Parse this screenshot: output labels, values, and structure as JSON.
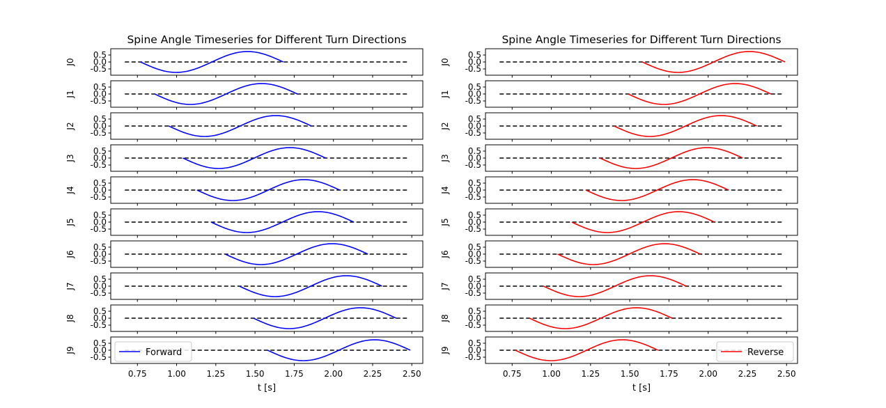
{
  "chart_data": [
    {
      "type": "line",
      "title": "Spine Angle Timeseries for Different Turn Directions",
      "xlabel": "t [s]",
      "xlim": [
        0.58,
        2.57
      ],
      "xticks": [
        "0.75",
        "1.00",
        "1.25",
        "1.50",
        "1.75",
        "2.00",
        "2.25",
        "2.50"
      ],
      "ylim": [
        -0.95,
        0.95
      ],
      "yticks": [
        "0.5",
        "0.0",
        "-0.5"
      ],
      "legend": {
        "label": "Forward",
        "position": "lower-left"
      },
      "color": "#0000ff",
      "baseline": {
        "x": [
          0.67,
          2.48
        ],
        "y": 0.0,
        "style": "dashed"
      },
      "series": [
        {
          "label": "J0",
          "t_start": 0.77,
          "t_end": 1.68,
          "amplitude": 0.75,
          "period": 0.91
        },
        {
          "label": "J1",
          "t_start": 0.86,
          "t_end": 1.77,
          "amplitude": 0.75,
          "period": 0.91
        },
        {
          "label": "J2",
          "t_start": 0.95,
          "t_end": 1.86,
          "amplitude": 0.75,
          "period": 0.91
        },
        {
          "label": "J3",
          "t_start": 1.04,
          "t_end": 1.95,
          "amplitude": 0.75,
          "period": 0.91
        },
        {
          "label": "J4",
          "t_start": 1.13,
          "t_end": 2.04,
          "amplitude": 0.75,
          "period": 0.91
        },
        {
          "label": "J5",
          "t_start": 1.22,
          "t_end": 2.13,
          "amplitude": 0.75,
          "period": 0.91
        },
        {
          "label": "J6",
          "t_start": 1.31,
          "t_end": 2.22,
          "amplitude": 0.75,
          "period": 0.91
        },
        {
          "label": "J7",
          "t_start": 1.4,
          "t_end": 2.31,
          "amplitude": 0.75,
          "period": 0.91
        },
        {
          "label": "J8",
          "t_start": 1.49,
          "t_end": 2.4,
          "amplitude": 0.75,
          "period": 0.91
        },
        {
          "label": "J9",
          "t_start": 1.58,
          "t_end": 2.49,
          "amplitude": 0.75,
          "period": 0.91
        }
      ]
    },
    {
      "type": "line",
      "title": "Spine Angle Timeseries for Different Turn Directions",
      "xlabel": "t [s]",
      "xlim": [
        0.58,
        2.57
      ],
      "xticks": [
        "0.75",
        "1.00",
        "1.25",
        "1.50",
        "1.75",
        "2.00",
        "2.25",
        "2.50"
      ],
      "ylim": [
        -0.95,
        0.95
      ],
      "yticks": [
        "0.5",
        "0.0",
        "-0.5"
      ],
      "legend": {
        "label": "Reverse",
        "position": "lower-right"
      },
      "color": "#ff0000",
      "baseline": {
        "x": [
          0.67,
          2.48
        ],
        "y": 0.0,
        "style": "dashed"
      },
      "series": [
        {
          "label": "J0",
          "t_start": 1.58,
          "t_end": 2.49,
          "amplitude": 0.75,
          "period": 0.91
        },
        {
          "label": "J1",
          "t_start": 1.49,
          "t_end": 2.4,
          "amplitude": 0.75,
          "period": 0.91
        },
        {
          "label": "J2",
          "t_start": 1.4,
          "t_end": 2.31,
          "amplitude": 0.75,
          "period": 0.91
        },
        {
          "label": "J3",
          "t_start": 1.31,
          "t_end": 2.22,
          "amplitude": 0.75,
          "period": 0.91
        },
        {
          "label": "J4",
          "t_start": 1.22,
          "t_end": 2.13,
          "amplitude": 0.75,
          "period": 0.91
        },
        {
          "label": "J5",
          "t_start": 1.13,
          "t_end": 2.04,
          "amplitude": 0.75,
          "period": 0.91
        },
        {
          "label": "J6",
          "t_start": 1.04,
          "t_end": 1.95,
          "amplitude": 0.75,
          "period": 0.91
        },
        {
          "label": "J7",
          "t_start": 0.95,
          "t_end": 1.86,
          "amplitude": 0.75,
          "period": 0.91
        },
        {
          "label": "J8",
          "t_start": 0.86,
          "t_end": 1.77,
          "amplitude": 0.75,
          "period": 0.91
        },
        {
          "label": "J9",
          "t_start": 0.77,
          "t_end": 1.68,
          "amplitude": 0.75,
          "period": 0.91
        }
      ]
    }
  ]
}
